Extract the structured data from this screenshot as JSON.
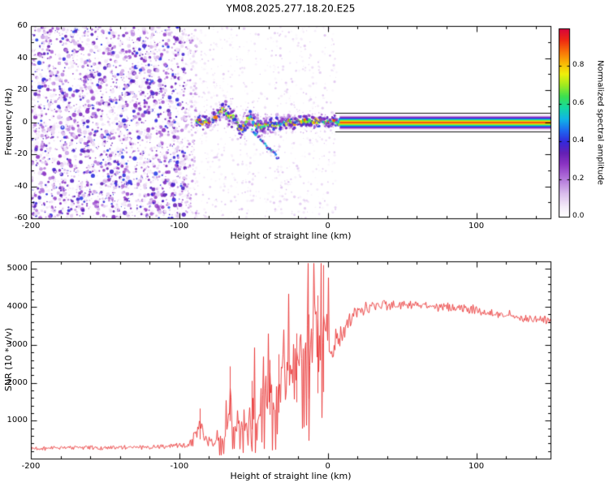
{
  "title": "YM08.2025.277.18.20.E25",
  "figure": {
    "background": "#ffffff",
    "axis_color": "#000000",
    "text_color": "#000000"
  },
  "chart_data": [
    {
      "type": "heatmap",
      "name": "spectrogram",
      "title": "YM08.2025.277.18.20.E25",
      "xlabel": "Height of straight line (km)",
      "ylabel": "Frequency (Hz)",
      "xlim": [
        -200,
        150
      ],
      "ylim": [
        -60,
        60
      ],
      "xticks": [
        -200,
        -100,
        0,
        100
      ],
      "yticks": [
        -60,
        -40,
        -20,
        0,
        20,
        40,
        60
      ],
      "grid": false,
      "colorbar": {
        "label": "Normalized spectral amplitude",
        "ticks": [
          "0.0",
          "0.2",
          "0.4",
          "0.6",
          "0.8"
        ],
        "tick_values": [
          0,
          0.2,
          0.4,
          0.6,
          0.8
        ],
        "range": [
          0,
          1
        ],
        "stops": [
          [
            0.0,
            "#ffffff"
          ],
          [
            0.05,
            "#f6eefa"
          ],
          [
            0.12,
            "#dcc0ee"
          ],
          [
            0.2,
            "#b478dc"
          ],
          [
            0.28,
            "#8c34c4"
          ],
          [
            0.34,
            "#6420b4"
          ],
          [
            0.4,
            "#3428dc"
          ],
          [
            0.46,
            "#1e68f0"
          ],
          [
            0.52,
            "#10b4e6"
          ],
          [
            0.58,
            "#14d8a4"
          ],
          [
            0.64,
            "#3ce050"
          ],
          [
            0.7,
            "#a0ea20"
          ],
          [
            0.76,
            "#f0f00a"
          ],
          [
            0.82,
            "#fab406"
          ],
          [
            0.88,
            "#f87008"
          ],
          [
            0.94,
            "#ee2812"
          ],
          [
            1.0,
            "#d8043c"
          ]
        ]
      },
      "features": {
        "noise_field": {
          "x_range": [
            -200,
            -96
          ],
          "y_range": [
            -60,
            60
          ],
          "amplitude_range": [
            0.03,
            0.43
          ],
          "description": "dense purple speckle noise across full band"
        },
        "sparse_band": {
          "x_range": [
            -96,
            -88
          ],
          "amplitude_range": [
            0.02,
            0.25
          ],
          "description": "less dense speckle column before signal acquisition"
        },
        "main_trace": [
          [
            -88,
            0
          ],
          [
            -86,
            1
          ],
          [
            -84,
            -1
          ],
          [
            -82,
            1
          ],
          [
            -80,
            0
          ],
          [
            -78,
            1
          ],
          [
            -76,
            3
          ],
          [
            -74,
            5
          ],
          [
            -72,
            7
          ],
          [
            -70,
            8
          ],
          [
            -68,
            5
          ],
          [
            -66,
            3
          ],
          [
            -64,
            4
          ],
          [
            -62,
            1
          ],
          [
            -60,
            -2
          ],
          [
            -58,
            -5
          ],
          [
            -56,
            -2
          ],
          [
            -54,
            2
          ],
          [
            -52,
            4
          ],
          [
            -50,
            0
          ],
          [
            -48,
            -3
          ],
          [
            -46,
            -1
          ],
          [
            -44,
            -4
          ],
          [
            -42,
            -1
          ],
          [
            -40,
            -2
          ],
          [
            -38,
            0
          ],
          [
            -36,
            -3
          ],
          [
            -34,
            -1
          ],
          [
            -32,
            -2
          ],
          [
            -30,
            0
          ],
          [
            -28,
            -1
          ],
          [
            -26,
            1
          ],
          [
            -24,
            0
          ],
          [
            -22,
            -1
          ],
          [
            -20,
            1
          ],
          [
            -18,
            0
          ],
          [
            -16,
            1
          ],
          [
            -14,
            0
          ],
          [
            -12,
            1
          ],
          [
            -10,
            0
          ],
          [
            -8,
            1
          ],
          [
            -6,
            0
          ],
          [
            -4,
            1
          ],
          [
            -2,
            0
          ],
          [
            0,
            1
          ],
          [
            2,
            0
          ],
          [
            4,
            1
          ],
          [
            6,
            0
          ]
        ],
        "descending_branch": [
          [
            -51,
            -5
          ],
          [
            -48,
            -8
          ],
          [
            -45,
            -11
          ],
          [
            -42,
            -14
          ],
          [
            -39,
            -17
          ],
          [
            -36,
            -20
          ],
          [
            -33,
            -23
          ]
        ],
        "locked_band": {
          "x_range": [
            8,
            150
          ],
          "center_hz": 0,
          "half_width_hz": 4.5,
          "peak_amplitude": 0.95,
          "description": "horizontal rainbow stripe of locked carrier"
        },
        "guide_lines_hz": [
          5.6,
          -5.6
        ]
      }
    },
    {
      "type": "line",
      "name": "snr",
      "xlabel": "Height of straight line (km)",
      "ylabel": "SNR (10 * v/v)",
      "xlim": [
        -200,
        150
      ],
      "ylim": [
        0,
        5200
      ],
      "xticks": [
        -200,
        -100,
        0,
        100
      ],
      "yticks": [
        1000,
        2000,
        3000,
        4000,
        5000
      ],
      "color": "#e93434",
      "envelope_base": [
        [
          -200,
          280
        ],
        [
          -160,
          285
        ],
        [
          -130,
          295
        ],
        [
          -110,
          300
        ],
        [
          -100,
          330
        ],
        [
          -93,
          360
        ],
        [
          -88,
          700
        ],
        [
          -86,
          1000
        ],
        [
          -84,
          500
        ],
        [
          -80,
          420
        ],
        [
          -76,
          430
        ],
        [
          -72,
          480
        ],
        [
          -68,
          700
        ],
        [
          -66,
          1800
        ],
        [
          -64,
          800
        ],
        [
          -60,
          900
        ],
        [
          -57,
          1200
        ],
        [
          -54,
          800
        ],
        [
          -51,
          1400
        ],
        [
          -48,
          1000
        ],
        [
          -45,
          1300
        ],
        [
          -42,
          1700
        ],
        [
          -39,
          2100
        ],
        [
          -36,
          1500
        ],
        [
          -33,
          2200
        ],
        [
          -30,
          2000
        ],
        [
          -27,
          2400
        ],
        [
          -24,
          2200
        ],
        [
          -21,
          2700
        ],
        [
          -18,
          2900
        ],
        [
          -15,
          2600
        ],
        [
          -12,
          3000
        ],
        [
          -9,
          3200
        ],
        [
          -6,
          3100
        ],
        [
          -3,
          3200
        ],
        [
          0,
          2900
        ],
        [
          3,
          3000
        ],
        [
          6,
          3200
        ],
        [
          10,
          3400
        ],
        [
          15,
          3650
        ],
        [
          20,
          3800
        ],
        [
          26,
          3950
        ],
        [
          34,
          4050
        ],
        [
          45,
          4080
        ],
        [
          55,
          4060
        ],
        [
          65,
          4020
        ],
        [
          75,
          4000
        ],
        [
          85,
          3960
        ],
        [
          95,
          3920
        ],
        [
          105,
          3860
        ],
        [
          115,
          3800
        ],
        [
          125,
          3740
        ],
        [
          135,
          3690
        ],
        [
          150,
          3620
        ]
      ],
      "noise_amplitude": [
        [
          -200,
          70
        ],
        [
          -140,
          75
        ],
        [
          -110,
          90
        ],
        [
          -100,
          120
        ],
        [
          -92,
          160
        ],
        [
          -86,
          250
        ],
        [
          -80,
          180
        ],
        [
          -74,
          220
        ],
        [
          -68,
          400
        ],
        [
          -62,
          550
        ],
        [
          -56,
          600
        ],
        [
          -50,
          700
        ],
        [
          -44,
          800
        ],
        [
          -38,
          900
        ],
        [
          -32,
          950
        ],
        [
          -26,
          1000
        ],
        [
          -20,
          1000
        ],
        [
          -14,
          1050
        ],
        [
          -8,
          1100
        ],
        [
          -3,
          1100
        ],
        [
          0,
          900
        ],
        [
          4,
          700
        ],
        [
          8,
          500
        ],
        [
          12,
          380
        ],
        [
          18,
          280
        ],
        [
          25,
          220
        ],
        [
          35,
          180
        ],
        [
          50,
          160
        ],
        [
          70,
          160
        ],
        [
          100,
          170
        ],
        [
          150,
          160
        ]
      ],
      "spikes": [
        [
          -86.5,
          1320
        ],
        [
          -66,
          2430
        ],
        [
          -51,
          2050
        ],
        [
          -39,
          2600
        ],
        [
          -33,
          2750
        ],
        [
          -21,
          3300
        ],
        [
          -13,
          3800
        ],
        [
          -7,
          4300
        ],
        [
          -3.2,
          5100
        ]
      ]
    }
  ]
}
